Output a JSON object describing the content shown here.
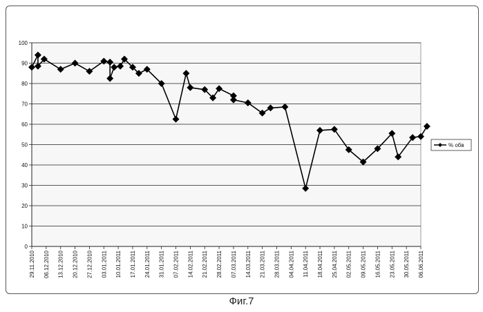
{
  "caption": "Фиг.7",
  "chart_data": {
    "type": "line",
    "title": "",
    "xlabel": "",
    "ylabel": "",
    "ylim": [
      0,
      100
    ],
    "yticks": [
      0,
      10,
      20,
      30,
      40,
      50,
      60,
      70,
      80,
      90,
      100
    ],
    "grid": "horizontal",
    "legend_position": "right",
    "x_tick_labels": [
      "29.11.2010",
      "06.12.2010",
      "13.12.2010",
      "20.12.2010",
      "27.12.2010",
      "03.01.2011",
      "10.01.2011",
      "17.01.2011",
      "24.01.2011",
      "31.01.2011",
      "07.02.2011",
      "14.02.2011",
      "21.02.2011",
      "28.02.2011",
      "07.03.2011",
      "14.03.2011",
      "21.03.2011",
      "28.03.2011",
      "04.04.2011",
      "11.04.2011",
      "18.04.2011",
      "25.04.2011",
      "02.05.2011",
      "09.05.2011",
      "16.05.2011",
      "23.05.2011",
      "30.05.2011",
      "06.06.2011"
    ],
    "series": [
      {
        "name": "% обв",
        "color": "#000000",
        "marker": "diamond",
        "points": [
          {
            "x": "29.11.2010",
            "y": 88
          },
          {
            "x": "02.12.2010",
            "y": 94
          },
          {
            "x": "02.12.2010",
            "y": 88.5
          },
          {
            "x": "05.12.2010",
            "y": 92
          },
          {
            "x": "13.12.2010",
            "y": 87
          },
          {
            "x": "20.12.2010",
            "y": 90
          },
          {
            "x": "27.12.2010",
            "y": 86
          },
          {
            "x": "03.01.2011",
            "y": 91
          },
          {
            "x": "06.01.2011",
            "y": 90.5
          },
          {
            "x": "06.01.2011",
            "y": 82.5
          },
          {
            "x": "08.01.2011",
            "y": 88
          },
          {
            "x": "11.01.2011",
            "y": 88.5
          },
          {
            "x": "13.01.2011",
            "y": 92
          },
          {
            "x": "17.01.2011",
            "y": 88
          },
          {
            "x": "20.01.2011",
            "y": 85
          },
          {
            "x": "24.01.2011",
            "y": 87
          },
          {
            "x": "31.01.2011",
            "y": 80
          },
          {
            "x": "07.02.2011",
            "y": 62.5
          },
          {
            "x": "12.02.2011",
            "y": 85
          },
          {
            "x": "14.02.2011",
            "y": 78
          },
          {
            "x": "21.02.2011",
            "y": 77
          },
          {
            "x": "25.02.2011",
            "y": 73
          },
          {
            "x": "28.02.2011",
            "y": 77.5
          },
          {
            "x": "07.03.2011",
            "y": 74
          },
          {
            "x": "07.03.2011",
            "y": 72
          },
          {
            "x": "14.03.2011",
            "y": 70.5
          },
          {
            "x": "21.03.2011",
            "y": 65.5
          },
          {
            "x": "25.03.2011",
            "y": 68
          },
          {
            "x": "01.04.2011",
            "y": 68.5
          },
          {
            "x": "11.04.2011",
            "y": 28.5
          },
          {
            "x": "18.04.2011",
            "y": 57
          },
          {
            "x": "25.04.2011",
            "y": 57.5
          },
          {
            "x": "02.05.2011",
            "y": 47.5
          },
          {
            "x": "09.05.2011",
            "y": 41.5
          },
          {
            "x": "16.05.2011",
            "y": 48
          },
          {
            "x": "23.05.2011",
            "y": 55.5
          },
          {
            "x": "26.05.2011",
            "y": 44
          },
          {
            "x": "02.06.2011",
            "y": 53.5
          },
          {
            "x": "06.06.2011",
            "y": 54
          },
          {
            "x": "09.06.2011",
            "y": 59
          }
        ]
      }
    ]
  }
}
